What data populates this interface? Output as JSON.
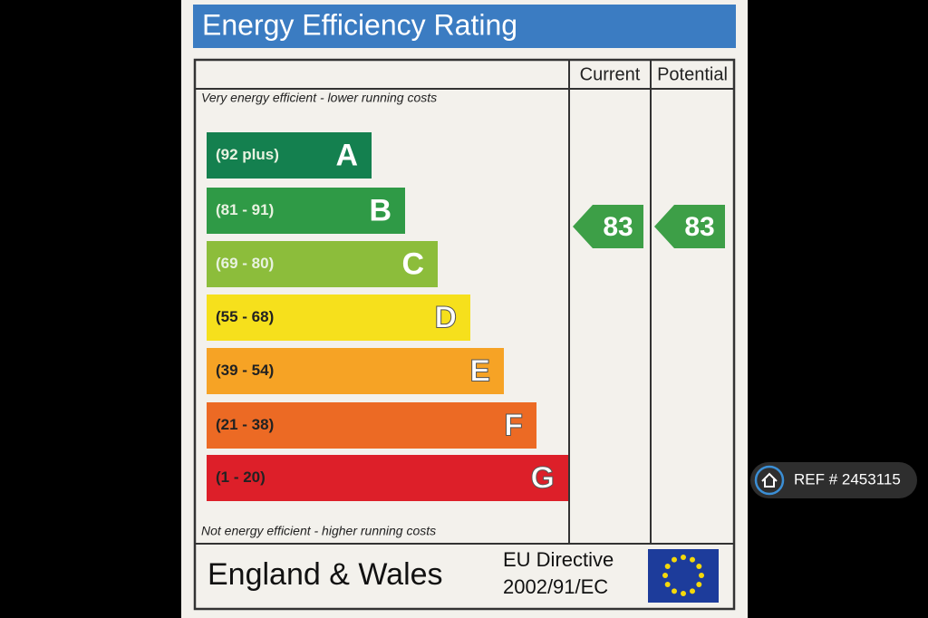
{
  "header": {
    "title": "Energy Efficiency Rating"
  },
  "table": {
    "columns": [
      "Current",
      "Potential"
    ],
    "top_note": "Very energy efficient - lower running costs",
    "bottom_note": "Not energy efficient - higher running costs",
    "bands": [
      {
        "range": "(92 plus)",
        "letter": "A",
        "color": "#14804f"
      },
      {
        "range": "(81 - 91)",
        "letter": "B",
        "color": "#2f9a46"
      },
      {
        "range": "(69 - 80)",
        "letter": "C",
        "color": "#8cbd3b"
      },
      {
        "range": "(55 - 68)",
        "letter": "D",
        "color": "#f6e01c"
      },
      {
        "range": "(39 - 54)",
        "letter": "E",
        "color": "#f6a325"
      },
      {
        "range": "(21 - 38)",
        "letter": "F",
        "color": "#ec6a24"
      },
      {
        "range": "(1 - 20)",
        "letter": "G",
        "color": "#dd1f29"
      }
    ],
    "current": 83,
    "potential": 83,
    "rating_color": "#3d9f47"
  },
  "footer": {
    "region": "England & Wales",
    "directive": [
      "EU Directive",
      "2002/91/EC"
    ]
  },
  "ref": "REF # 2453115"
}
